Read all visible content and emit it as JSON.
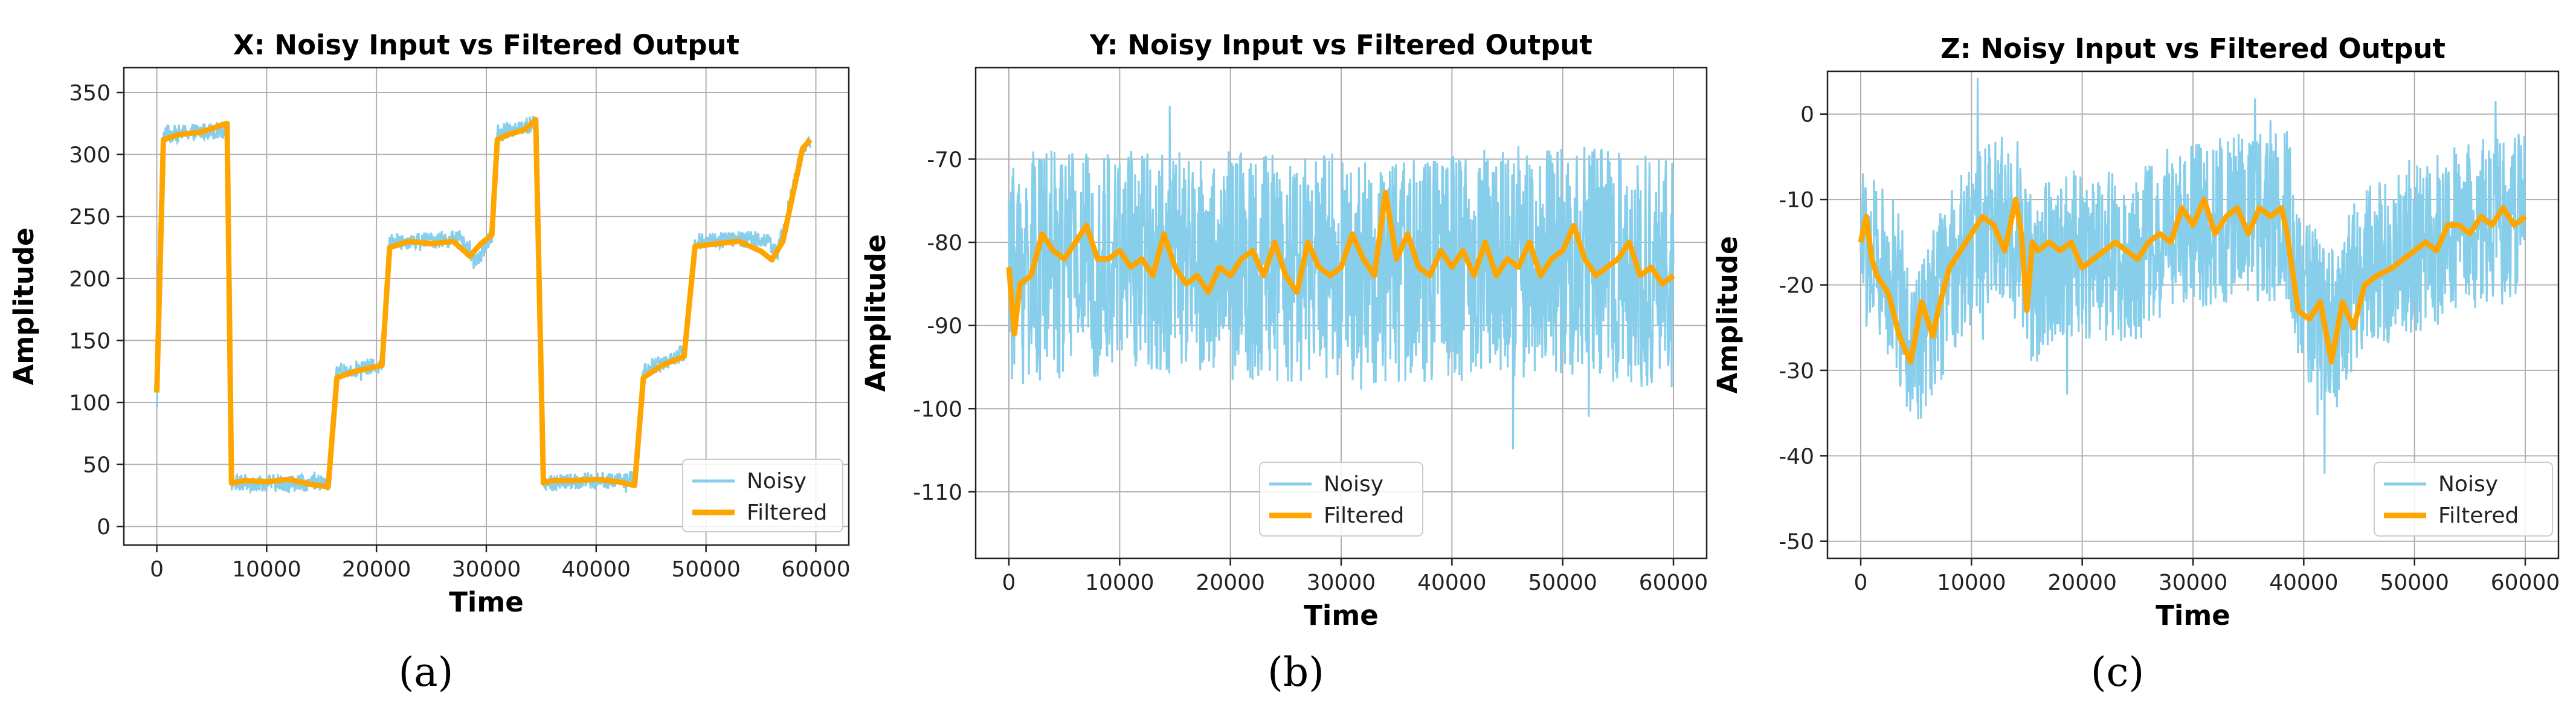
{
  "chart_data": [
    {
      "type": "line",
      "caption": "(a)",
      "title": "X: Noisy Input vs Filtered Output",
      "xlabel": "Time",
      "ylabel": "Amplitude",
      "xlim": [
        -3000,
        63000
      ],
      "ylim": [
        -15,
        370
      ],
      "xticks": [
        0,
        10000,
        20000,
        30000,
        40000,
        50000,
        60000
      ],
      "yticks": [
        0,
        50,
        100,
        150,
        200,
        250,
        300,
        350
      ],
      "grid": true,
      "legend": {
        "position": "bottom-right",
        "entries": [
          "Noisy",
          "Filtered"
        ]
      },
      "series": [
        {
          "name": "Noisy",
          "color": "#87CEEB",
          "noise_amplitude": 7,
          "x": [
            0,
            600,
            6400,
            6800,
            15600,
            16400,
            20500,
            21200,
            27800,
            29000,
            30500,
            31000,
            34500,
            35200,
            43500,
            44300,
            48000,
            49000,
            55500,
            56500,
            58800,
            59500
          ],
          "values": [
            100,
            316,
            320,
            35,
            35,
            125,
            130,
            230,
            232,
            212,
            235,
            318,
            325,
            35,
            38,
            125,
            140,
            230,
            232,
            220,
            305,
            310
          ]
        },
        {
          "name": "Filtered",
          "color": "#FFA500",
          "x": [
            0,
            600,
            2000,
            4000,
            6400,
            6800,
            8000,
            10000,
            12000,
            14000,
            15600,
            16400,
            18000,
            20500,
            21200,
            23000,
            25000,
            27000,
            28500,
            29500,
            30500,
            31000,
            32000,
            33500,
            34500,
            35200,
            36000,
            38000,
            40000,
            42000,
            43500,
            44300,
            46000,
            48000,
            49000,
            51000,
            53000,
            55000,
            56000,
            57000,
            58800,
            59500
          ],
          "values": [
            108,
            312,
            316,
            318,
            325,
            35,
            37,
            36,
            38,
            34,
            32,
            120,
            125,
            130,
            225,
            230,
            228,
            230,
            218,
            228,
            235,
            312,
            316,
            320,
            328,
            35,
            37,
            37,
            38,
            36,
            33,
            120,
            130,
            137,
            226,
            228,
            230,
            222,
            215,
            230,
            305,
            312
          ]
        }
      ]
    },
    {
      "type": "line",
      "caption": "(b)",
      "title": "Y: Noisy Input vs Filtered Output",
      "xlabel": "Time",
      "ylabel": "Amplitude",
      "xlim": [
        -3000,
        63000
      ],
      "ylim": [
        -118,
        -59
      ],
      "xticks": [
        0,
        10000,
        20000,
        30000,
        40000,
        50000,
        60000
      ],
      "yticks": [
        -110,
        -100,
        -90,
        -80,
        -70
      ],
      "grid": true,
      "legend": {
        "position": "bottom-center",
        "entries": [
          "Noisy",
          "Filtered"
        ]
      },
      "series": [
        {
          "name": "Noisy",
          "color": "#87CEEB",
          "noise_amplitude": 14,
          "x": [
            0,
            2000,
            10000,
            20000,
            30000,
            40000,
            50000,
            60000
          ],
          "values": [
            -84,
            -83,
            -82,
            -83,
            -83,
            -83,
            -82,
            -84
          ]
        },
        {
          "name": "Filtered",
          "color": "#FFA500",
          "x": [
            0,
            500,
            1000,
            2000,
            3000,
            4000,
            5000,
            6000,
            7000,
            8000,
            9000,
            10000,
            11000,
            12000,
            13000,
            14000,
            15000,
            16000,
            17000,
            18000,
            19000,
            20000,
            21000,
            22000,
            23000,
            24000,
            25000,
            26000,
            27000,
            28000,
            29000,
            30000,
            31000,
            32000,
            33000,
            34000,
            35000,
            36000,
            37000,
            38000,
            39000,
            40000,
            41000,
            42000,
            43000,
            44000,
            45000,
            46000,
            47000,
            48000,
            49000,
            50000,
            51000,
            52000,
            53000,
            54000,
            55000,
            56000,
            57000,
            58000,
            59000,
            60000
          ],
          "values": [
            -83,
            -91,
            -85,
            -84,
            -79,
            -81,
            -82,
            -80,
            -78,
            -82,
            -82,
            -81,
            -83,
            -82,
            -84,
            -79,
            -83,
            -85,
            -84,
            -86,
            -83,
            -84,
            -82,
            -81,
            -84,
            -80,
            -84,
            -86,
            -80,
            -83,
            -84,
            -83,
            -79,
            -82,
            -84,
            -74,
            -82,
            -79,
            -83,
            -84,
            -81,
            -83,
            -81,
            -84,
            -80,
            -84,
            -82,
            -83,
            -80,
            -84,
            -82,
            -81,
            -78,
            -82,
            -84,
            -83,
            -82,
            -80,
            -84,
            -83,
            -85,
            -84
          ]
        }
      ]
    },
    {
      "type": "line",
      "caption": "(c)",
      "title": "Z: Noisy Input vs Filtered Output",
      "xlabel": "Time",
      "ylabel": "Amplitude",
      "xlim": [
        -3000,
        63000
      ],
      "ylim": [
        -52,
        5
      ],
      "xticks": [
        0,
        10000,
        20000,
        30000,
        40000,
        50000,
        60000
      ],
      "yticks": [
        -50,
        -40,
        -30,
        -20,
        -10,
        0
      ],
      "grid": true,
      "legend": {
        "position": "bottom-right",
        "entries": [
          "Noisy",
          "Filtered"
        ]
      },
      "series": [
        {
          "name": "Noisy",
          "color": "#87CEEB",
          "noise_amplitude": 10,
          "x": [
            0,
            3000,
            5000,
            7000,
            10000,
            14000,
            15500,
            18000,
            25000,
            28000,
            35000,
            38500,
            40000,
            43000,
            45000,
            50000,
            55000,
            60000
          ],
          "values": [
            -15,
            -20,
            -28,
            -22,
            -14,
            -12,
            -20,
            -16,
            -17,
            -13,
            -12,
            -12,
            -22,
            -26,
            -18,
            -16,
            -13,
            -12
          ]
        },
        {
          "name": "Filtered",
          "color": "#FFA500",
          "x": [
            0,
            500,
            1000,
            1500,
            2500,
            3500,
            4500,
            5500,
            6500,
            7000,
            8000,
            9000,
            10000,
            11000,
            12000,
            13000,
            14000,
            14500,
            15000,
            15500,
            16000,
            17000,
            18000,
            19000,
            20000,
            21000,
            22000,
            23000,
            24000,
            25000,
            26000,
            27000,
            28000,
            29000,
            30000,
            31000,
            32000,
            33000,
            34000,
            35000,
            36000,
            37000,
            38000,
            38500,
            39500,
            40500,
            41500,
            42500,
            43500,
            44500,
            45500,
            46500,
            48000,
            50000,
            51000,
            52000,
            53000,
            54000,
            55000,
            56000,
            57000,
            58000,
            59000,
            60000
          ],
          "values": [
            -15,
            -12,
            -17,
            -19,
            -21,
            -26,
            -29,
            -22,
            -26,
            -23,
            -18,
            -16,
            -14,
            -12,
            -13,
            -16,
            -10,
            -14,
            -23,
            -15,
            -16,
            -15,
            -16,
            -15,
            -18,
            -17,
            -16,
            -15,
            -16,
            -17,
            -15,
            -14,
            -15,
            -11,
            -13,
            -10,
            -14,
            -12,
            -11,
            -14,
            -11,
            -12,
            -11,
            -14,
            -23,
            -24,
            -22,
            -29,
            -22,
            -25,
            -20,
            -19,
            -18,
            -16,
            -15,
            -16,
            -13,
            -13,
            -14,
            -12,
            -13,
            -11,
            -13,
            -12
          ]
        }
      ]
    }
  ]
}
